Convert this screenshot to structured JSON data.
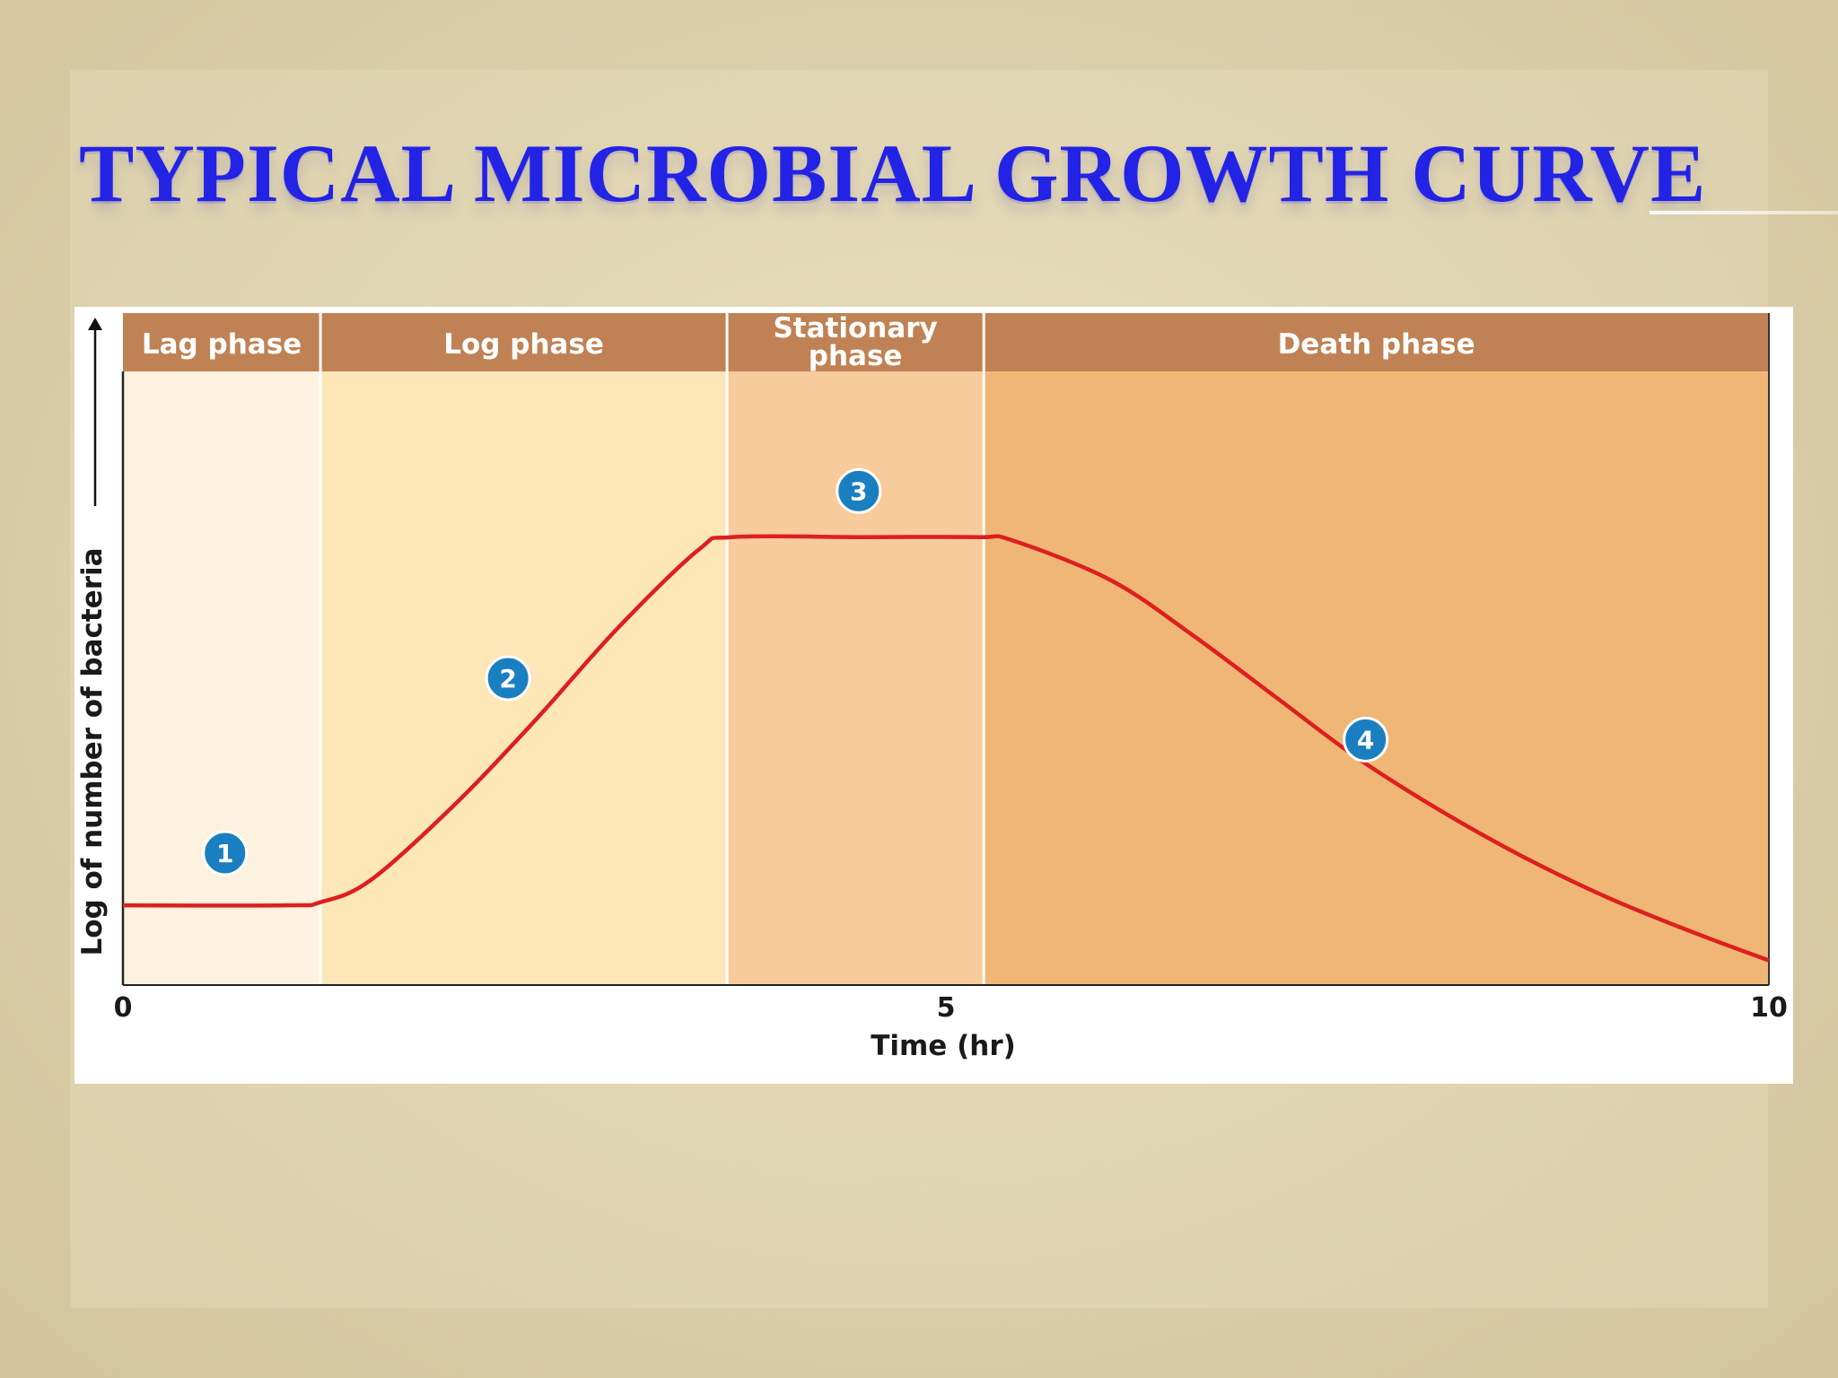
{
  "slide": {
    "title": "TYPICAL MICROBIAL GROWTH CURVE"
  },
  "chart_data": {
    "type": "line",
    "title": "",
    "xlabel": "Time (hr)",
    "ylabel": "Log of number of bacteria",
    "xlim": [
      0,
      10
    ],
    "ylim": [
      0,
      10
    ],
    "x_ticks": [
      {
        "value": 0,
        "label": "0"
      },
      {
        "value": 5,
        "label": "5"
      },
      {
        "value": 10,
        "label": "10"
      }
    ],
    "phases": [
      {
        "label": [
          "Lag phase"
        ],
        "x_start": 0,
        "x_end": 1.2,
        "color": "#fdf2df"
      },
      {
        "label": [
          "Log phase"
        ],
        "x_start": 1.2,
        "x_end": 3.67,
        "color": "#fde6b8"
      },
      {
        "label": [
          "Stationary",
          "phase"
        ],
        "x_start": 3.67,
        "x_end": 5.23,
        "color": "#f8cb9c"
      },
      {
        "label": [
          "Death phase"
        ],
        "x_start": 5.23,
        "x_end": 10,
        "color": "#f0b675"
      }
    ],
    "header_color": "#c08254",
    "line_color": "#dd1f1f",
    "marker_color": "#1a7fc0",
    "series": [
      {
        "x": [
          0,
          1.0,
          1.2,
          1.5,
          2.0,
          2.5,
          3.0,
          3.5,
          3.7,
          4.5,
          5.2,
          5.4,
          6.0,
          6.5,
          7.0,
          7.5,
          8.0,
          8.5,
          9.0,
          9.5,
          10.0
        ],
        "y": [
          1.3,
          1.3,
          1.35,
          1.7,
          2.9,
          4.3,
          5.8,
          7.1,
          7.3,
          7.3,
          7.3,
          7.25,
          6.6,
          5.7,
          4.7,
          3.7,
          2.85,
          2.1,
          1.45,
          0.9,
          0.4
        ]
      }
    ],
    "markers": [
      {
        "label": "1",
        "x": 0.62,
        "y": 2.15
      },
      {
        "label": "2",
        "x": 2.34,
        "y": 5.0
      },
      {
        "label": "3",
        "x": 4.47,
        "y": 8.05
      },
      {
        "label": "4",
        "x": 7.55,
        "y": 4.0
      }
    ]
  }
}
